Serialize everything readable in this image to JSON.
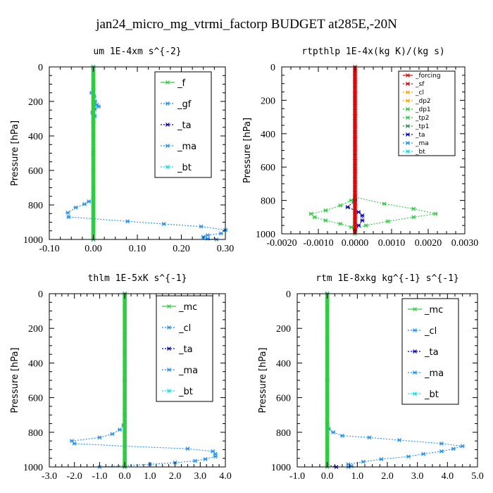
{
  "figure": {
    "title": "jan24_micro_mg_vtrmi_factorp  BUDGET at285E,-20N"
  },
  "chart_data": [
    {
      "type": "line",
      "title": "um   1E-4xm s^{-2}",
      "ylabel": "Pressure [hPa]",
      "xlim": [
        -0.1,
        0.3
      ],
      "ylim": [
        1000,
        0
      ],
      "xticks": [
        "-0.10",
        "0.00",
        "0.10",
        "0.20",
        "0.30"
      ],
      "yticks": [
        "0",
        "200",
        "400",
        "600",
        "800",
        "1000"
      ],
      "legend": [
        "_f",
        "_gf",
        "_ta",
        "_ma",
        "_bt"
      ],
      "legend_position": "top-right",
      "series": [
        {
          "name": "_gf",
          "color": "#1e90ff",
          "points": [
            [
              0.0,
              0
            ],
            [
              0.0,
              130
            ],
            [
              -0.004,
              150
            ],
            [
              0.002,
              170
            ],
            [
              0.004,
              200
            ],
            [
              0.008,
              220
            ],
            [
              0.012,
              230
            ],
            [
              0.003,
              245
            ],
            [
              -0.002,
              265
            ],
            [
              0.003,
              285
            ],
            [
              0.0,
              320
            ],
            [
              0.0,
              400
            ],
            [
              0.0,
              500
            ],
            [
              0.0,
              600
            ],
            [
              0.0,
              700
            ],
            [
              0.0,
              760
            ],
            [
              -0.01,
              780
            ],
            [
              -0.02,
              795
            ],
            [
              -0.04,
              815
            ],
            [
              -0.058,
              845
            ],
            [
              -0.056,
              870
            ],
            [
              0.0,
              880
            ],
            [
              0.078,
              895
            ],
            [
              0.16,
              910
            ],
            [
              0.245,
              925
            ],
            [
              0.3,
              945
            ],
            [
              0.29,
              965
            ],
            [
              0.26,
              975
            ],
            [
              0.25,
              985
            ],
            [
              0.26,
              995
            ],
            [
              0.28,
              1000
            ]
          ]
        },
        {
          "name": "_ta",
          "color": "#0000cd",
          "points": [
            [
              0.0,
              0
            ],
            [
              0.0,
              500
            ],
            [
              0.0,
              1000
            ]
          ]
        },
        {
          "name": "_f",
          "color": "#2ecc40",
          "points": [
            [
              0.0,
              0
            ],
            [
              0.0,
              100
            ],
            [
              0.0,
              200
            ],
            [
              0.0,
              300
            ],
            [
              0.0,
              400
            ],
            [
              0.0,
              500
            ],
            [
              0.0,
              600
            ],
            [
              0.0,
              700
            ],
            [
              0.0,
              800
            ],
            [
              0.0,
              900
            ],
            [
              0.0,
              1000
            ]
          ]
        }
      ]
    },
    {
      "type": "line",
      "title": "rtpthlp   1E-4x(kg K)/(kg s)",
      "ylabel": "Pressure [hPa]",
      "xlim": [
        -0.002,
        0.003
      ],
      "ylim": [
        1000,
        0
      ],
      "xticks": [
        "-0.0020",
        "-0.0010",
        "0.0000",
        "0.0010",
        "0.0020",
        "0.0030"
      ],
      "yticks": [
        "0",
        "200",
        "400",
        "600",
        "800",
        "1000"
      ],
      "legend": [
        "_forcing",
        "_sf",
        "_cl",
        "_dp2",
        "_dp1",
        "_tp2",
        "_tp1",
        "_ta",
        "_ma",
        "_bt"
      ],
      "legend_position": "top-right",
      "series": [
        {
          "name": "_dp1",
          "color": "#2ecc40",
          "points": [
            [
              0.0,
              0
            ],
            [
              0.0,
              780
            ],
            [
              -0.0001,
              800
            ],
            [
              -0.0004,
              830
            ],
            [
              -0.0008,
              860
            ],
            [
              -0.0012,
              880
            ],
            [
              -0.0011,
              900
            ],
            [
              -0.0008,
              920
            ],
            [
              -0.0004,
              940
            ],
            [
              -0.0001,
              960
            ],
            [
              0.0,
              980
            ],
            [
              0.0,
              1000
            ]
          ]
        },
        {
          "name": "_tp2",
          "color": "#2ecc40",
          "points": [
            [
              0.0,
              780
            ],
            [
              0.0008,
              820
            ],
            [
              0.0016,
              850
            ],
            [
              0.0022,
              880
            ],
            [
              0.0016,
              900
            ],
            [
              0.0009,
              925
            ],
            [
              0.0003,
              950
            ],
            [
              0.0,
              970
            ]
          ]
        },
        {
          "name": "_ta",
          "color": "#0000cd",
          "points": [
            [
              0.0,
              800
            ],
            [
              -0.0002,
              840
            ],
            [
              0.0001,
              870
            ],
            [
              0.0002,
              890
            ],
            [
              0.0002,
              920
            ],
            [
              0.0001,
              950
            ],
            [
              0.0,
              980
            ]
          ]
        },
        {
          "name": "_forcing",
          "color": "#e00000",
          "points": [
            [
              0.0,
              0
            ],
            [
              0.0,
              500
            ],
            [
              0.0,
              1000
            ]
          ]
        }
      ]
    },
    {
      "type": "line",
      "title": "thlm   1E-5xK s^{-1}",
      "ylabel": "Pressure [hPa]",
      "xlim": [
        -3.0,
        4.0
      ],
      "ylim": [
        1000,
        0
      ],
      "xticks": [
        "-3.0",
        "-2.0",
        "-1.0",
        "0.0",
        "1.0",
        "2.0",
        "3.0",
        "4.0"
      ],
      "yticks": [
        "0",
        "200",
        "400",
        "600",
        "800",
        "1000"
      ],
      "legend": [
        "_mc",
        "_cl",
        "_ta",
        "_ma",
        "_bt"
      ],
      "legend_position": "top-right",
      "series": [
        {
          "name": "_cl",
          "color": "#1e90ff",
          "points": [
            [
              0.0,
              0
            ],
            [
              0.0,
              700
            ],
            [
              -0.05,
              760
            ],
            [
              -0.2,
              785
            ],
            [
              -0.5,
              810
            ],
            [
              -1.0,
              830
            ],
            [
              -2.1,
              850
            ],
            [
              -2.0,
              865
            ],
            [
              0.0,
              880
            ],
            [
              2.5,
              895
            ],
            [
              3.5,
              910
            ],
            [
              3.6,
              925
            ],
            [
              3.6,
              940
            ],
            [
              3.2,
              955
            ],
            [
              2.8,
              965
            ],
            [
              2.0,
              975
            ],
            [
              1.0,
              985
            ],
            [
              0.0,
              993
            ],
            [
              -1.0,
              1000
            ]
          ]
        },
        {
          "name": "_ta",
          "color": "#0000cd",
          "points": [
            [
              0.0,
              0
            ],
            [
              0.0,
              500
            ],
            [
              0.0,
              1000
            ]
          ]
        },
        {
          "name": "_mc",
          "color": "#2ecc40",
          "points": [
            [
              0.0,
              0
            ],
            [
              0.0,
              100
            ],
            [
              0.0,
              200
            ],
            [
              0.0,
              300
            ],
            [
              0.0,
              400
            ],
            [
              0.0,
              500
            ],
            [
              0.0,
              600
            ],
            [
              0.0,
              700
            ],
            [
              0.0,
              800
            ],
            [
              0.0,
              900
            ],
            [
              0.0,
              1000
            ]
          ]
        }
      ]
    },
    {
      "type": "line",
      "title": "rtm   1E-8xkg kg^{-1} s^{-1}",
      "ylabel": "Pressure [hPa]",
      "xlim": [
        -1.0,
        5.0
      ],
      "ylim": [
        1000,
        0
      ],
      "xticks": [
        "-1.0",
        "0.0",
        "1.0",
        "2.0",
        "3.0",
        "4.0",
        "5.0"
      ],
      "yticks": [
        "0",
        "200",
        "400",
        "600",
        "800",
        "1000"
      ],
      "legend": [
        "_mc",
        "_cl",
        "_ta",
        "_ma",
        "_bt"
      ],
      "legend_position": "top-right",
      "series": [
        {
          "name": "_cl",
          "color": "#1e90ff",
          "points": [
            [
              0.0,
              0
            ],
            [
              0.0,
              750
            ],
            [
              0.05,
              780
            ],
            [
              0.2,
              800
            ],
            [
              0.5,
              820
            ],
            [
              1.4,
              830
            ],
            [
              2.4,
              845
            ],
            [
              3.8,
              865
            ],
            [
              4.5,
              880
            ],
            [
              4.2,
              895
            ],
            [
              3.8,
              910
            ],
            [
              3.2,
              925
            ],
            [
              2.7,
              940
            ],
            [
              1.8,
              955
            ],
            [
              1.2,
              970
            ],
            [
              0.7,
              985
            ],
            [
              0.8,
              995
            ],
            [
              0.7,
              1000
            ]
          ]
        },
        {
          "name": "_ta",
          "color": "#0000cd",
          "points": [
            [
              0.0,
              0
            ],
            [
              0.0,
              500
            ],
            [
              0.0,
              990
            ],
            [
              0.3,
              1000
            ]
          ]
        },
        {
          "name": "_mc",
          "color": "#2ecc40",
          "points": [
            [
              0.0,
              0
            ],
            [
              0.0,
              100
            ],
            [
              0.0,
              200
            ],
            [
              0.0,
              300
            ],
            [
              0.0,
              400
            ],
            [
              0.0,
              500
            ],
            [
              0.0,
              600
            ],
            [
              0.0,
              700
            ],
            [
              0.0,
              800
            ],
            [
              0.0,
              900
            ],
            [
              0.0,
              1000
            ]
          ]
        }
      ]
    }
  ]
}
